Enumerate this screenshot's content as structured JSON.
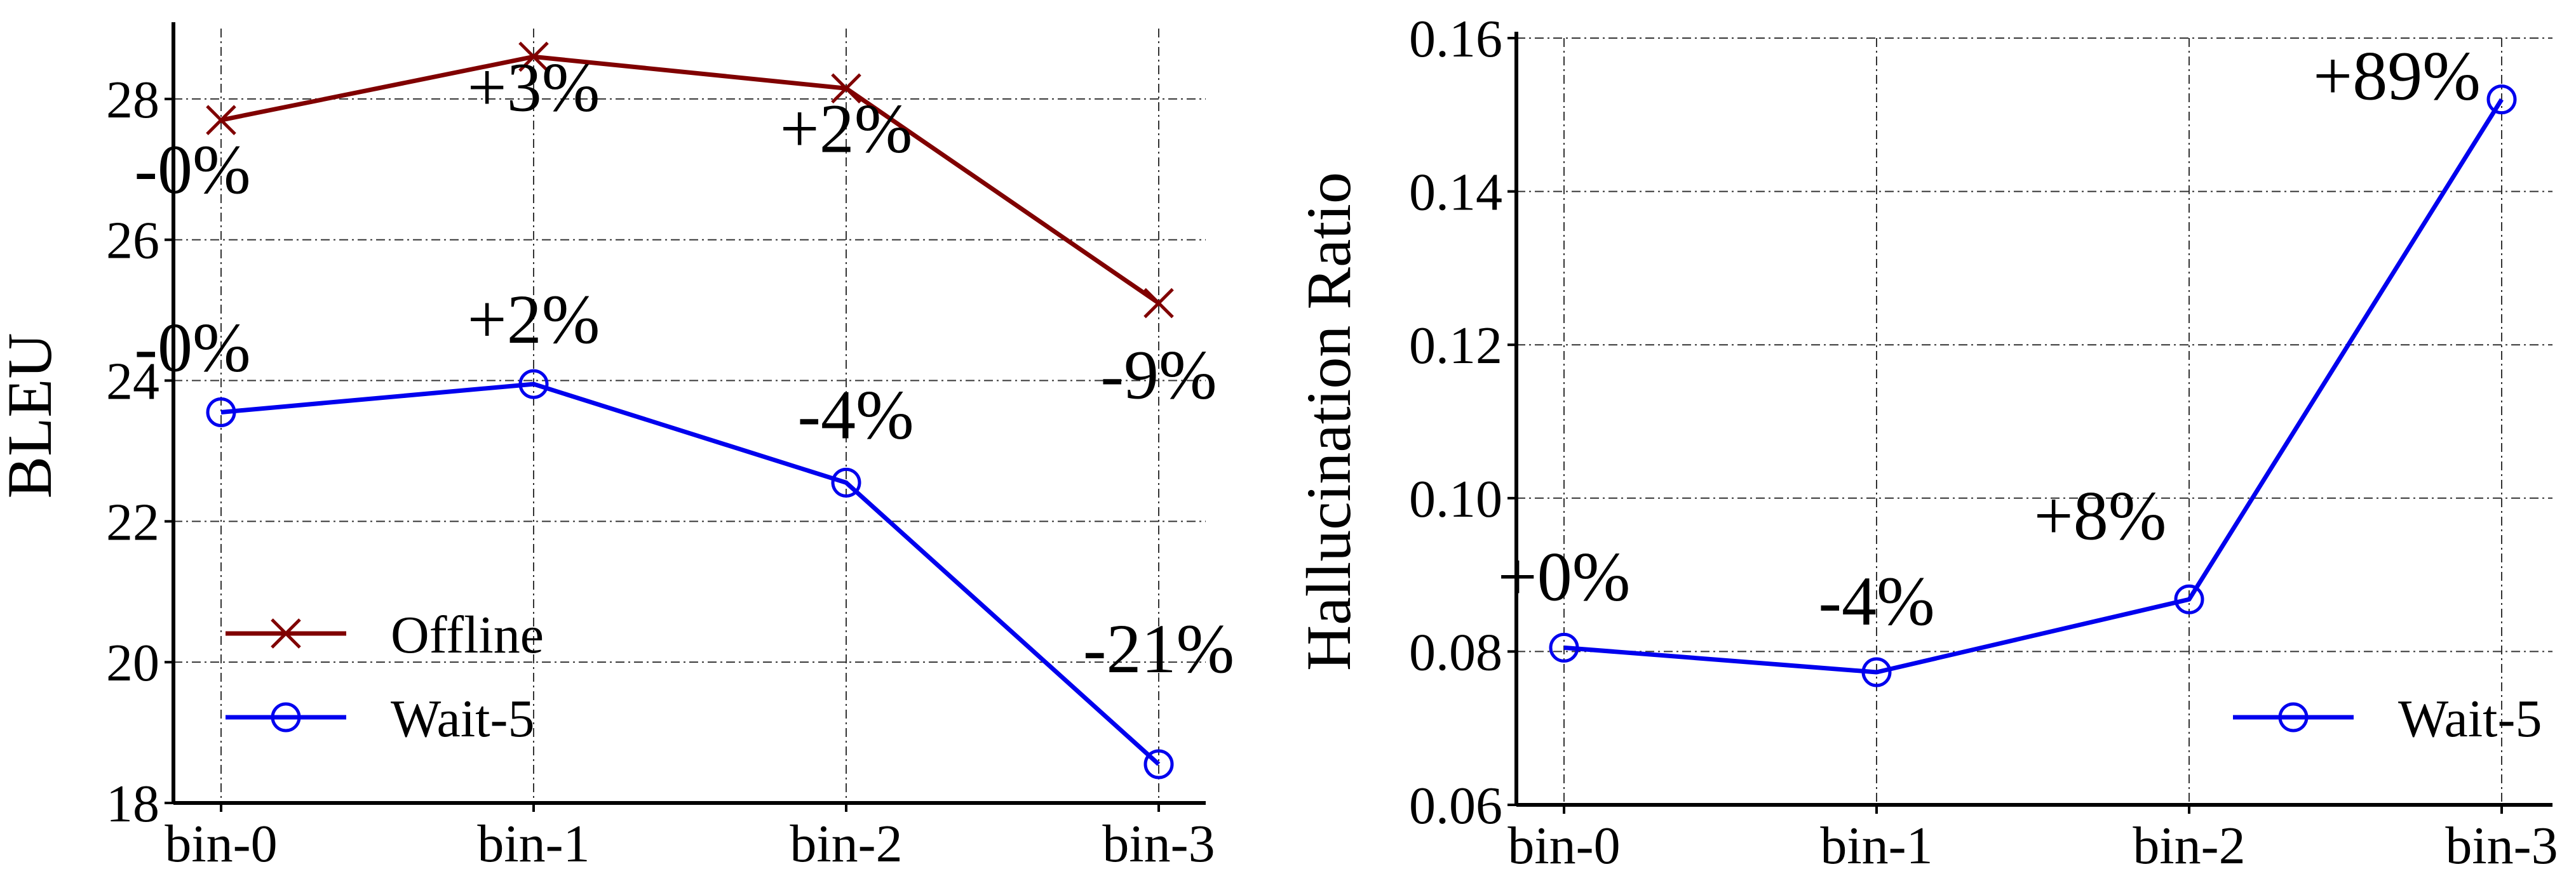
{
  "chart_data": [
    {
      "type": "line",
      "categories": [
        "bin-0",
        "bin-1",
        "bin-2",
        "bin-3"
      ],
      "ylabel": "BLEU",
      "ylim": [
        18,
        29
      ],
      "yticks": [
        18,
        20,
        22,
        24,
        26,
        28
      ],
      "grid": true,
      "legend": "bottom-left",
      "series": [
        {
          "name": "Offline",
          "values": [
            27.7,
            28.6,
            28.15,
            25.1
          ],
          "labels": [
            "-0%",
            "+3%",
            "+2%",
            "-9%"
          ],
          "color": "#800000",
          "marker": "x"
        },
        {
          "name": "Wait-5",
          "values": [
            23.55,
            23.95,
            22.55,
            18.55
          ],
          "labels": [
            "-0%",
            "+2%",
            "-4%",
            "-21%"
          ],
          "color": "#0000ee",
          "marker": "circle"
        }
      ]
    },
    {
      "type": "line",
      "categories": [
        "bin-0",
        "bin-1",
        "bin-2",
        "bin-3"
      ],
      "ylabel": "Hallucination Ratio",
      "ylim": [
        0.06,
        0.16
      ],
      "yticks": [
        "0.06",
        "0.08",
        "0.10",
        "0.12",
        "0.14",
        "0.16"
      ],
      "grid": true,
      "legend": "bottom-right",
      "series": [
        {
          "name": "Wait-5",
          "values": [
            0.0805,
            0.0773,
            0.0868,
            0.152
          ],
          "labels": [
            "+0%",
            "-4%",
            "+8%",
            "+89%"
          ],
          "color": "#0000ee",
          "marker": "circle"
        }
      ]
    }
  ]
}
